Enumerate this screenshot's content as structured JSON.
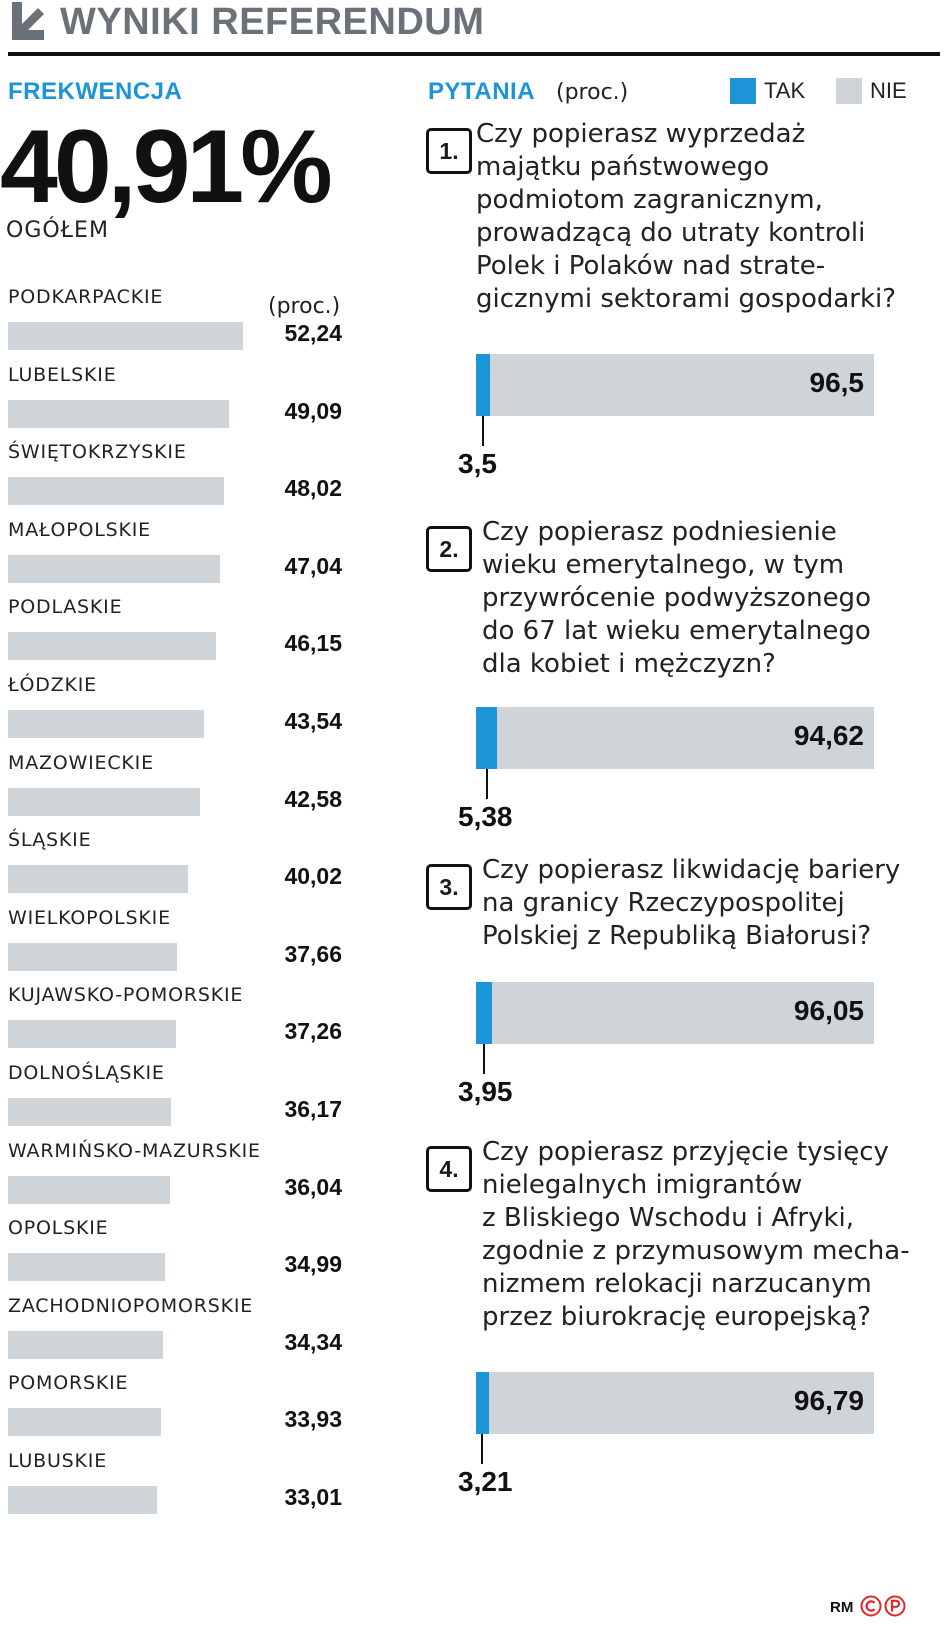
{
  "header": {
    "title": "WYNIKI REFERENDUM",
    "icon": "arrow-down-right-icon"
  },
  "turnout": {
    "heading": "FREKWENCJA",
    "overall_value": "40,91%",
    "overall_label": "OGÓŁEM",
    "unit": "(proc.)"
  },
  "questions_section": {
    "heading": "PYTANIA",
    "unit": "(proc.)"
  },
  "legend": [
    {
      "label": "TAK",
      "color": "#1b95d8"
    },
    {
      "label": "NIE",
      "color": "#cfd4d8"
    }
  ],
  "credit": {
    "text": "RM",
    "icons": [
      "copyright-icon",
      "p-icon"
    ]
  },
  "chart_data": [
    {
      "type": "bar",
      "orientation": "horizontal",
      "title": "FREKWENCJA",
      "unit": "(proc.)",
      "categories": [
        "PODKARPACKIE",
        "LUBELSKIE",
        "ŚWIĘTOKRZYSKIE",
        "MAŁOPOLSKIE",
        "PODLASKIE",
        "ŁÓDZKIE",
        "MAZOWIECKIE",
        "ŚLĄSKIE",
        "WIELKOPOLSKIE",
        "KUJAWSKO-POMORSKIE",
        "DOLNOŚLĄSKIE",
        "WARMIŃSKO-MAZURSKIE",
        "OPOLSKIE",
        "ZACHODNIOPOMORSKIE",
        "POMORSKIE",
        "LUBUSKIE"
      ],
      "values": [
        52.24,
        49.09,
        48.02,
        47.04,
        46.15,
        43.54,
        42.58,
        40.02,
        37.66,
        37.26,
        36.17,
        36.04,
        34.99,
        34.34,
        33.93,
        33.01
      ],
      "value_labels": [
        "52,24",
        "49,09",
        "48,02",
        "47,04",
        "46,15",
        "43,54",
        "42,58",
        "40,02",
        "37,66",
        "37,26",
        "36,17",
        "36,04",
        "34,99",
        "34,34",
        "33,93",
        "33,01"
      ],
      "color": "#cfd4d8"
    },
    {
      "type": "bar",
      "orientation": "horizontal",
      "stacked": true,
      "title": "PYTANIA",
      "unit": "(proc.)",
      "series_names": [
        "TAK",
        "NIE"
      ],
      "questions": [
        {
          "number": "1.",
          "text": "Czy popierasz wyprzedaż\nmajątku państwowego\npodmiotom zagranicznym,\nprowadzącą do utraty kontroli\nPolek i Polaków nad strate-\ngicznymi sektorami gospodarki?",
          "tak": 3.5,
          "nie": 96.5,
          "tak_label": "3,5",
          "nie_label": "96,5"
        },
        {
          "number": "2.",
          "text": "Czy popierasz podniesienie\nwieku emerytalnego, w tym\nprzywrócenie podwyższonego\ndo 67 lat wieku emerytalnego\ndla kobiet i mężczyzn?",
          "tak": 5.38,
          "nie": 94.62,
          "tak_label": "5,38",
          "nie_label": "94,62"
        },
        {
          "number": "3.",
          "text": "Czy popierasz likwidację bariery\nna granicy Rzeczypospolitej\nPolskiej z Republiką Białorusi?",
          "tak": 3.95,
          "nie": 96.05,
          "tak_label": "3,95",
          "nie_label": "96,05"
        },
        {
          "number": "4.",
          "text": "Czy popierasz przyjęcie tysięcy\nnielegalnych imigrantów\nz Bliskiego Wschodu i Afryki,\nzgodnie z przymusowym mecha-\nnizmem relokacji narzucanym\nprzez biurokrację europejską?",
          "tak": 3.21,
          "nie": 96.79,
          "tak_label": "3,21",
          "nie_label": "96,79"
        }
      ]
    }
  ]
}
